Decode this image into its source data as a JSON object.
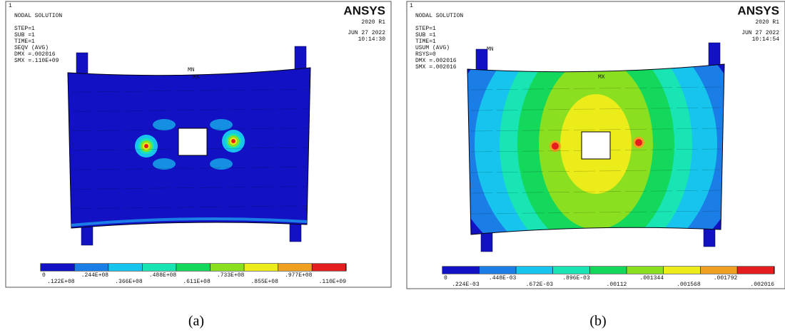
{
  "panels": [
    {
      "corner_label": "1",
      "header_lines": [
        "NODAL SOLUTION",
        "STEP=1",
        "SUB =1",
        "TIME=1",
        "SEQV     (AVG)",
        "DMX =.002016",
        "SMX =.110E+09"
      ],
      "brand": "ANSYS",
      "version": "2020 R1",
      "date": "JUN 27 2022",
      "time": "10:14:30",
      "min_marker": "MN",
      "max_marker": "MX",
      "legend_labels": [
        "0",
        ".122E+08",
        ".244E+08",
        ".366E+08",
        ".488E+08",
        ".611E+08",
        ".733E+08",
        ".855E+08",
        ".977E+08",
        ".110E+09"
      ],
      "caption": "(a)"
    },
    {
      "corner_label": "1",
      "header_lines": [
        "NODAL SOLUTION",
        "STEP=1",
        "SUB =1",
        "TIME=1",
        "USUM     (AVG)",
        "RSYS=0",
        "DMX =.002016",
        "SMX =.002016"
      ],
      "brand": "ANSYS",
      "version": "2020 R1",
      "date": "JUN 27 2022",
      "time": "10:14:54",
      "min_marker": "MN",
      "max_marker": "MX",
      "legend_labels": [
        "0",
        ".224E-03",
        ".448E-03",
        ".672E-03",
        ".896E-03",
        ".00112",
        ".001344",
        ".001568",
        ".001792",
        ".002016"
      ],
      "caption": "(b)"
    }
  ],
  "legend_colors": [
    "#1212c4",
    "#1a7ee6",
    "#16c4ee",
    "#18e4b4",
    "#14d85c",
    "#8ae020",
    "#ecec1a",
    "#f0a020",
    "#e41e1e"
  ]
}
